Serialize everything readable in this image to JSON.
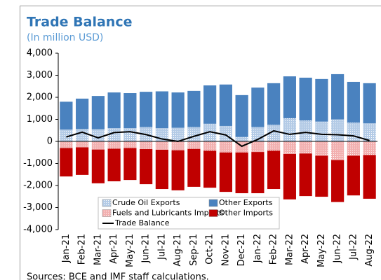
{
  "chart_data": {
    "type": "bar",
    "title": "Trade Balance",
    "subtitle": "(In million USD)",
    "source": "Sources: BCE and IMF staff calculations.",
    "categories": [
      "Jan-21",
      "Feb-21",
      "Mar-21",
      "Apr-21",
      "May-21",
      "Jun-21",
      "Jul-21",
      "Aug-21",
      "Sep-21",
      "Oct-21",
      "Nov-21",
      "Dec-21",
      "Jan-22",
      "Feb-22",
      "Mar-22",
      "Apr-22",
      "May-22",
      "Jun-22",
      "Jul-22",
      "Aug-22"
    ],
    "series": [
      {
        "name": "Crude Oil Exports",
        "color": "#b4cbe6",
        "dotted": true,
        "values": [
          540,
          560,
          550,
          600,
          600,
          650,
          600,
          620,
          650,
          800,
          700,
          200,
          650,
          750,
          1050,
          950,
          900,
          1000,
          850,
          820
        ]
      },
      {
        "name": "Other Exports",
        "color": "#4a82bf",
        "values": [
          1260,
          1380,
          1510,
          1620,
          1590,
          1600,
          1670,
          1600,
          1640,
          1740,
          1880,
          1900,
          1790,
          1890,
          1900,
          1940,
          1930,
          2050,
          1850,
          1820
        ]
      },
      {
        "name": "Fuels and Lubricants Imports",
        "color": "#f2b0b0",
        "dotted": true,
        "values": [
          -300,
          -270,
          -370,
          -330,
          -300,
          -350,
          -380,
          -400,
          -340,
          -420,
          -500,
          -500,
          -480,
          -420,
          -570,
          -550,
          -650,
          -850,
          -650,
          -620
        ]
      },
      {
        "name": "Other Imports",
        "color": "#c00000",
        "values": [
          -1290,
          -1250,
          -1530,
          -1480,
          -1450,
          -1590,
          -1780,
          -1820,
          -1720,
          -1680,
          -1790,
          -1850,
          -1870,
          -1740,
          -2060,
          -1930,
          -1860,
          -1900,
          -1800,
          -1980
        ]
      },
      {
        "name": "Trade Balance",
        "type": "line",
        "color": "#000000",
        "values": [
          200,
          420,
          160,
          400,
          440,
          310,
          110,
          0,
          230,
          440,
          290,
          -220,
          90,
          480,
          320,
          410,
          320,
          300,
          250,
          40
        ]
      }
    ],
    "ylim": [
      -4000,
      4000
    ],
    "yticks": [
      {
        "value": -4000,
        "label": "-4,000"
      },
      {
        "value": -3000,
        "label": "-3,000"
      },
      {
        "value": -2000,
        "label": "-2,000"
      },
      {
        "value": -1000,
        "label": "-1,000"
      },
      0,
      {
        "value": 1000,
        "label": "1,000"
      },
      {
        "value": 2000,
        "label": "2,000"
      },
      {
        "value": 3000,
        "label": "3,000"
      },
      {
        "value": 4000,
        "label": "4,000"
      }
    ],
    "legend": "bottom-left"
  }
}
